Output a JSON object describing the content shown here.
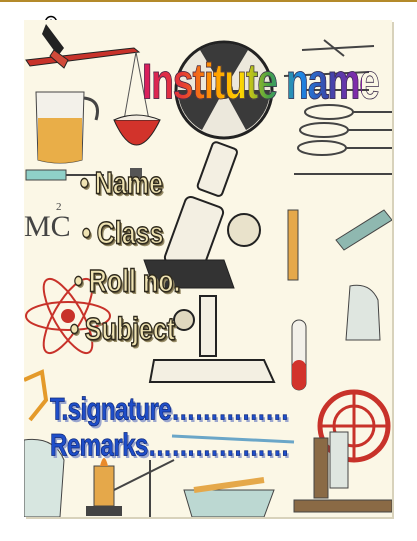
{
  "cover": {
    "title": "Institute name",
    "fields": [
      {
        "label": "Name"
      },
      {
        "label": "Class"
      },
      {
        "label": "Roll no."
      },
      {
        "label": "Subject"
      }
    ],
    "signature": "T.signature……………",
    "remarks": "Remarks………………",
    "formula_text": "MC",
    "formula_exp": "2"
  },
  "colors": {
    "bullet_fill": "#efe3b2",
    "signature_blue": "#1f4ec9",
    "paper": "#fbf7e6"
  },
  "icons": [
    "zoom-cursor-icon",
    "balance-scale-icon",
    "beaker-icon",
    "microscope-icon",
    "atom-icon",
    "radiation-symbol-icon",
    "test-tube-icon",
    "bunsen-burner-icon",
    "electrostatic-machine-icon",
    "spoon-icon",
    "tweezers-icon"
  ]
}
